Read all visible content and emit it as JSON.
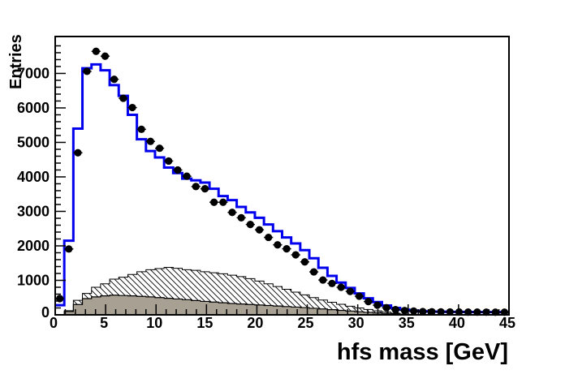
{
  "chart_data": {
    "type": "bar",
    "subtype": "root-histogram-overlay",
    "title": "",
    "xlabel": "hfs mass [GeV]",
    "ylabel": "Entries",
    "xlim": [
      0,
      45
    ],
    "ylim": [
      0,
      8070
    ],
    "bin_width": 0.9,
    "bin_start": 0,
    "n_bins": 50,
    "grid": false,
    "legend": null,
    "x_tick_labels": [
      "0",
      "5",
      "10",
      "15",
      "20",
      "25",
      "30",
      "35",
      "40",
      "45"
    ],
    "x_major_ticks": [
      0,
      5,
      10,
      15,
      20,
      25,
      30,
      35,
      40,
      45
    ],
    "x_minor_step": 1,
    "y_tick_labels": [
      "0",
      "1000",
      "2000",
      "3000",
      "4000",
      "5000",
      "6000",
      "7000"
    ],
    "y_major_ticks": [
      0,
      1000,
      2000,
      3000,
      4000,
      5000,
      6000,
      7000
    ],
    "y_minor_step": 200,
    "colors": {
      "frame": "#000000",
      "data_marker": "#000000",
      "mc_line": "#0000ee",
      "hatch_line": "#000000",
      "solid_fill": "#a8a092",
      "background": "#ffffff"
    },
    "series": [
      {
        "name": "data-points",
        "style": "markers",
        "marker": "filled-circle",
        "values": [
          470,
          1910,
          4700,
          7060,
          7640,
          7500,
          6830,
          6280,
          6010,
          5380,
          5030,
          4830,
          4460,
          4200,
          4020,
          3720,
          3655,
          3265,
          3265,
          2970,
          2815,
          2620,
          2465,
          2245,
          2030,
          1915,
          1740,
          1535,
          1245,
          1010,
          910,
          800,
          680,
          540,
          385,
          280,
          205,
          150,
          125,
          108,
          95,
          90,
          86,
          84,
          82,
          80,
          79,
          78,
          77,
          76
        ]
      },
      {
        "name": "mc-total",
        "style": "step-line",
        "values": [
          280,
          2150,
          5400,
          7150,
          7260,
          7090,
          6660,
          6350,
          5800,
          5090,
          4750,
          4565,
          4270,
          4110,
          3950,
          3900,
          3835,
          3655,
          3445,
          3325,
          3130,
          2970,
          2815,
          2620,
          2425,
          2245,
          2070,
          1875,
          1640,
          1365,
          1130,
          935,
          780,
          620,
          480,
          370,
          270,
          200,
          150,
          120,
          103,
          95,
          90,
          86,
          84,
          82,
          80,
          79,
          78,
          77
        ]
      },
      {
        "name": "background-hatched",
        "style": "hatched-fill",
        "values": [
          0,
          120,
          420,
          620,
          800,
          900,
          1035,
          1090,
          1170,
          1250,
          1310,
          1340,
          1375,
          1350,
          1310,
          1290,
          1250,
          1220,
          1190,
          1150,
          1110,
          1050,
          980,
          900,
          820,
          740,
          660,
          580,
          500,
          430,
          365,
          305,
          250,
          200,
          155,
          115,
          80,
          48,
          20,
          6,
          0,
          0,
          0,
          0,
          0,
          0,
          0,
          0,
          0,
          0
        ]
      },
      {
        "name": "background-solid",
        "style": "solid-fill",
        "values": [
          0,
          95,
          300,
          470,
          520,
          550,
          570,
          560,
          550,
          535,
          520,
          500,
          480,
          460,
          440,
          415,
          390,
          370,
          350,
          330,
          315,
          300,
          285,
          270,
          255,
          240,
          225,
          210,
          190,
          170,
          150,
          130,
          110,
          90,
          72,
          55,
          40,
          26,
          14,
          5,
          0,
          0,
          0,
          0,
          0,
          0,
          0,
          0,
          0,
          0
        ]
      }
    ]
  }
}
